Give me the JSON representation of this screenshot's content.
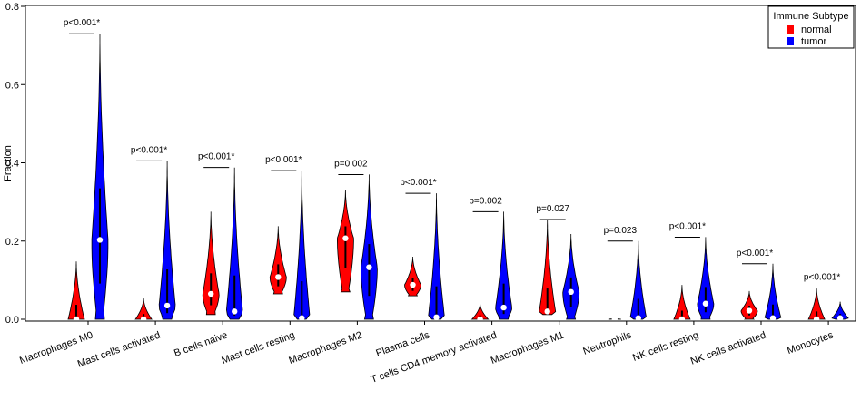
{
  "chart_data": {
    "type": "violin",
    "title": "",
    "xlabel": "",
    "ylabel": "Fraction",
    "ylim": [
      0,
      0.8
    ],
    "yticks": [
      0.0,
      0.2,
      0.4,
      0.6,
      0.8
    ],
    "ytick_labels": [
      "0.0",
      "0.2",
      "0.4",
      "0.6",
      "0.8"
    ],
    "legend": {
      "title": "Immune Subtype",
      "position": "top-right",
      "entries": [
        {
          "name": "normal",
          "color": "#ff0000"
        },
        {
          "name": "tumor",
          "color": "#0000ff"
        }
      ]
    },
    "categories": [
      "Macrophages M0",
      "Mast cells activated",
      "B cells naive",
      "Mast cells resting",
      "Macrophages M2",
      "Plasma cells",
      "T cells CD4 memory activated",
      "Macrophages M1",
      "Neutrophils",
      "NK cells resting",
      "NK cells activated",
      "Monocytes"
    ],
    "p_values": [
      "p<0.001*",
      "p<0.001*",
      "p<0.001*",
      "p<0.001*",
      "p=0.002",
      "p<0.001*",
      "p=0.002",
      "p=0.027",
      "p=0.023",
      "p<0.001*",
      "p<0.001*",
      "p<0.001*"
    ],
    "series": [
      {
        "name": "normal",
        "color": "#ff0000",
        "median": [
          0.0,
          0.0,
          0.065,
          0.108,
          0.207,
          0.088,
          0.0,
          0.02,
          0.0,
          0.0,
          0.022,
          0.0
        ],
        "min": [
          0.0,
          0.0,
          0.012,
          0.065,
          0.07,
          0.06,
          0.0,
          0.012,
          0.0,
          0.0,
          0.0,
          0.0
        ],
        "max": [
          0.148,
          0.054,
          0.275,
          0.238,
          0.33,
          0.16,
          0.04,
          0.255,
          0.003,
          0.088,
          0.072,
          0.08
        ]
      },
      {
        "name": "tumor",
        "color": "#0000ff",
        "median": [
          0.203,
          0.035,
          0.02,
          0.003,
          0.133,
          0.005,
          0.03,
          0.07,
          0.003,
          0.04,
          0.003,
          0.003
        ],
        "min": [
          0.0,
          0.0,
          0.0,
          0.0,
          0.0,
          0.0,
          0.0,
          0.0,
          0.0,
          0.0,
          0.0,
          0.0
        ],
        "max": [
          0.73,
          0.405,
          0.388,
          0.38,
          0.37,
          0.322,
          0.275,
          0.218,
          0.2,
          0.21,
          0.142,
          0.045
        ]
      }
    ]
  }
}
